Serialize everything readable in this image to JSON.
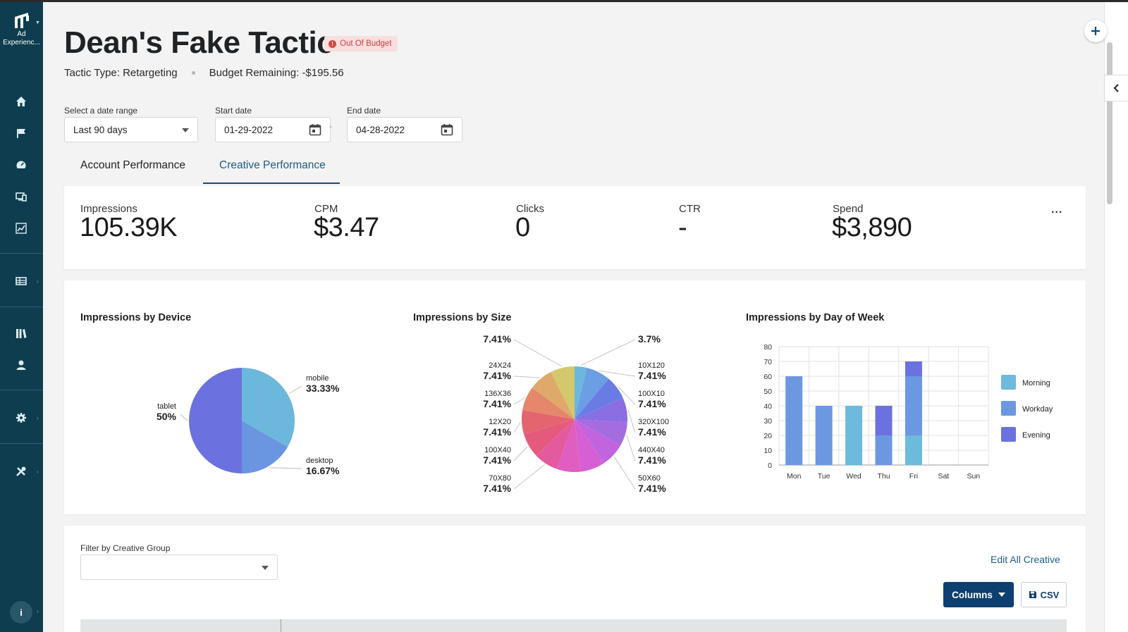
{
  "app": {
    "brand_line1": "Ad",
    "brand_line2": "Experienc..."
  },
  "sidebar": {
    "items": [
      {
        "icon": "home-icon"
      },
      {
        "icon": "flag-icon"
      },
      {
        "icon": "dashboard-icon"
      },
      {
        "icon": "devices-icon"
      },
      {
        "icon": "analytics-icon"
      },
      {
        "icon": "table-icon"
      },
      {
        "icon": "library-icon"
      },
      {
        "icon": "user-icon"
      },
      {
        "icon": "settings-icon"
      },
      {
        "icon": "tools-icon"
      }
    ],
    "info_label": "i"
  },
  "header": {
    "title": "Dean's Fake Tactic",
    "status_badge": "Out Of Budget",
    "tactic_type": "Tactic Type: Retargeting",
    "budget_remaining": "Budget Remaining: -$195.56"
  },
  "filters": {
    "date_range_label": "Select a date range",
    "date_range_value": "Last 90 days",
    "start_label": "Start date",
    "start_value": "01-29-2022",
    "end_label": "End date",
    "end_value": "04-28-2022",
    "separator": "-"
  },
  "tabs": [
    {
      "label": "Account Performance",
      "active": false
    },
    {
      "label": "Creative Performance",
      "active": true
    }
  ],
  "metrics": [
    {
      "label": "Impressions",
      "value": "105.39K"
    },
    {
      "label": "CPM",
      "value": "$3.47"
    },
    {
      "label": "Clicks",
      "value": "0"
    },
    {
      "label": "CTR",
      "value": "-"
    },
    {
      "label": "Spend",
      "value": "$3,890"
    }
  ],
  "more_menu": "...",
  "chart_data": [
    {
      "type": "pie",
      "title": "Impressions by Device",
      "slices": [
        {
          "label": "mobile",
          "value": 33.33,
          "display": "33.33%",
          "color": "#6cb7dc"
        },
        {
          "label": "desktop",
          "value": 16.67,
          "display": "16.67%",
          "color": "#6a95e0"
        },
        {
          "label": "tablet",
          "value": 50,
          "display": "50%",
          "color": "#6b72df"
        }
      ]
    },
    {
      "type": "pie",
      "title": "Impressions by Size",
      "slices": [
        {
          "label": "",
          "value": 3.7,
          "display": "3.7%",
          "color": "#6cb7dc"
        },
        {
          "label": "10X120",
          "value": 7.41,
          "display": "7.41%",
          "color": "#6b9ee2"
        },
        {
          "label": "100X10",
          "value": 7.41,
          "display": "7.41%",
          "color": "#6a7ce3"
        },
        {
          "label": "320X100",
          "value": 7.41,
          "display": "7.41%",
          "color": "#8a6ee3"
        },
        {
          "label": "440X40",
          "value": 7.41,
          "display": "7.41%",
          "color": "#a56ce2"
        },
        {
          "label": "50X60",
          "value": 7.41,
          "display": "7.41%",
          "color": "#c264dd"
        },
        {
          "label": "",
          "value": 7.41,
          "display": "",
          "color": "#d55fd3"
        },
        {
          "label": "",
          "value": 7.41,
          "display": "",
          "color": "#df5ebf"
        },
        {
          "label": "70X80",
          "value": 7.41,
          "display": "7.41%",
          "color": "#e35a9e"
        },
        {
          "label": "100X40",
          "value": 7.41,
          "display": "7.41%",
          "color": "#e55a7c"
        },
        {
          "label": "12X20",
          "value": 7.41,
          "display": "7.41%",
          "color": "#e46470"
        },
        {
          "label": "136X36",
          "value": 7.41,
          "display": "7.41%",
          "color": "#e4876a"
        },
        {
          "label": "24X24",
          "value": 7.41,
          "display": "7.41%",
          "color": "#e0a96c"
        },
        {
          "label": "",
          "value": 7.41,
          "display": "7.41%",
          "color": "#d4c86c"
        }
      ]
    },
    {
      "type": "bar",
      "stacked": true,
      "title": "Impressions by Day of Week",
      "categories": [
        "Mon",
        "Tue",
        "Wed",
        "Thu",
        "Fri",
        "Sat",
        "Sun"
      ],
      "series": [
        {
          "name": "Morning",
          "color": "#6cbadc",
          "values": [
            0,
            0,
            40,
            0,
            20,
            0,
            0
          ]
        },
        {
          "name": "Workday",
          "color": "#6b98e0",
          "values": [
            60,
            40,
            0,
            20,
            40,
            0,
            0
          ]
        },
        {
          "name": "Evening",
          "color": "#6b72df",
          "values": [
            0,
            0,
            0,
            20,
            10,
            0,
            0
          ]
        }
      ],
      "ylim": [
        0,
        80
      ],
      "yticks": [
        "0",
        "10",
        "20",
        "30",
        "40",
        "50",
        "60",
        "70",
        "80"
      ],
      "grid": true,
      "legend": "right"
    }
  ],
  "creative_filter": {
    "label": "Filter by Creative Group",
    "value": "",
    "edit_link": "Edit All Creative",
    "columns_button": "Columns",
    "csv_button": "CSV"
  }
}
